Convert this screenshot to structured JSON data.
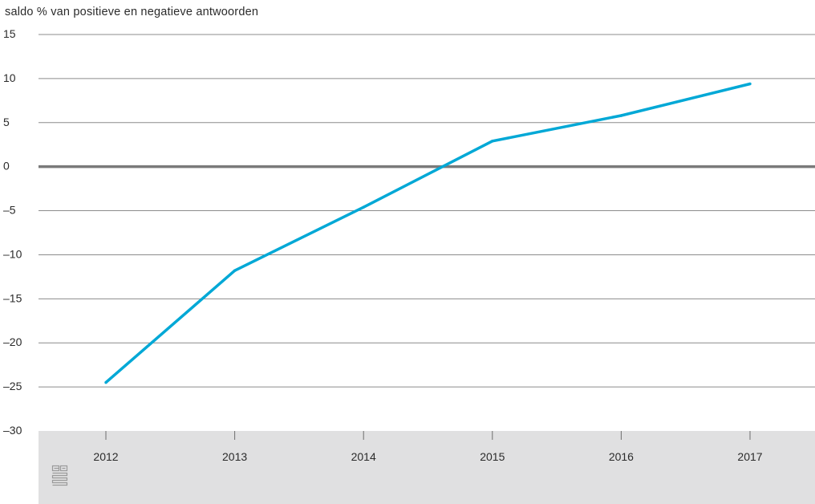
{
  "chart_data": {
    "type": "line",
    "title": "",
    "ylabel": "saldo % van positieve en negatieve antwoorden",
    "xlabel": "",
    "x": [
      "2012",
      "2013",
      "2014",
      "2015",
      "2016",
      "2017"
    ],
    "series": [
      {
        "values": [
          -24.5,
          -11.8,
          -4.6,
          2.9,
          5.8,
          9.4
        ],
        "color": "#00a8d6"
      }
    ],
    "ylim": [
      -30,
      15
    ],
    "yticks": [
      15,
      10,
      5,
      0,
      -5,
      -10,
      -15,
      -20,
      -25,
      -30
    ],
    "ytick_labels": [
      "15",
      "10",
      "5",
      "0",
      "–5",
      "–10",
      "–15",
      "–20",
      "–25",
      "–30"
    ],
    "grid": true,
    "legend": "none",
    "colors": {
      "grid": "#8c8c8c",
      "zero_line": "#7a7a7a",
      "axis_band": "#e0e0e1",
      "logo": "#9a9a9a"
    }
  },
  "logo_icon": "cbs-logo-icon"
}
